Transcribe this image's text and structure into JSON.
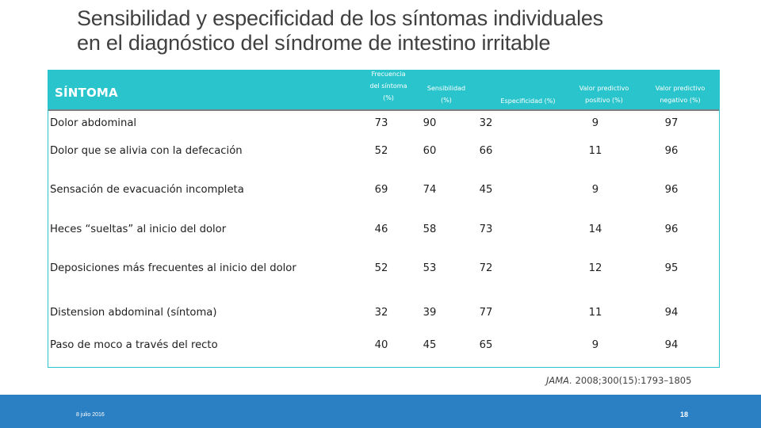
{
  "slide": {
    "title_line1": "Sensibilidad y especificidad de los síntomas individuales",
    "title_line2": "en el diagnóstico del síndrome de intestino irritable"
  },
  "table": {
    "header": {
      "sintoma": "SÍNTOMA",
      "frecuencia_1": "Frecuencia",
      "frecuencia_2": "del síntoma",
      "frecuencia_3": "(%)",
      "sensibilidad_1": "Sensibilidad",
      "sensibilidad_2": "(%)",
      "especificidad": "Especificidad (%)",
      "vpp_1": "Valor predictivo",
      "vpp_2": "positivo  (%)",
      "vpn_1": "Valor predictivo",
      "vpn_2": "negativo  (%)"
    },
    "rows": [
      {
        "sintoma": "Dolor abdominal",
        "frecuencia": "73",
        "sensibilidad": "90",
        "especificidad": "32",
        "vpp": "9",
        "vpn": "97"
      },
      {
        "sintoma": "Dolor que se alivia con la defecación",
        "frecuencia": "52",
        "sensibilidad": "60",
        "especificidad": "66",
        "vpp": "11",
        "vpn": "96"
      },
      {
        "sintoma": "Sensación de evacuación incompleta",
        "frecuencia": "69",
        "sensibilidad": "74",
        "especificidad": "45",
        "vpp": "9",
        "vpn": "96"
      },
      {
        "sintoma": "Heces “sueltas” al inicio del dolor",
        "frecuencia": "46",
        "sensibilidad": "58",
        "especificidad": "73",
        "vpp": "14",
        "vpn": "96"
      },
      {
        "sintoma": "Deposiciones más frecuentes al inicio del dolor",
        "frecuencia": "52",
        "sensibilidad": "53",
        "especificidad": "72",
        "vpp": "12",
        "vpn": "95"
      },
      {
        "sintoma": "Distension abdominal (síntoma)",
        "frecuencia": "32",
        "sensibilidad": "39",
        "especificidad": "77",
        "vpp": "11",
        "vpn": "94"
      },
      {
        "sintoma": "Paso de moco a través del recto",
        "frecuencia": "40",
        "sensibilidad": "45",
        "especificidad": "65",
        "vpp": "9",
        "vpn": "94"
      }
    ]
  },
  "citation": {
    "journal": "JAMA.",
    "ref": " 2008;300(15):1793–1805"
  },
  "footer": {
    "date": "8 julio 2016",
    "page": "18"
  },
  "colors": {
    "header_bg": "#2ac5cc",
    "footer_bg": "#2b7fc3"
  }
}
